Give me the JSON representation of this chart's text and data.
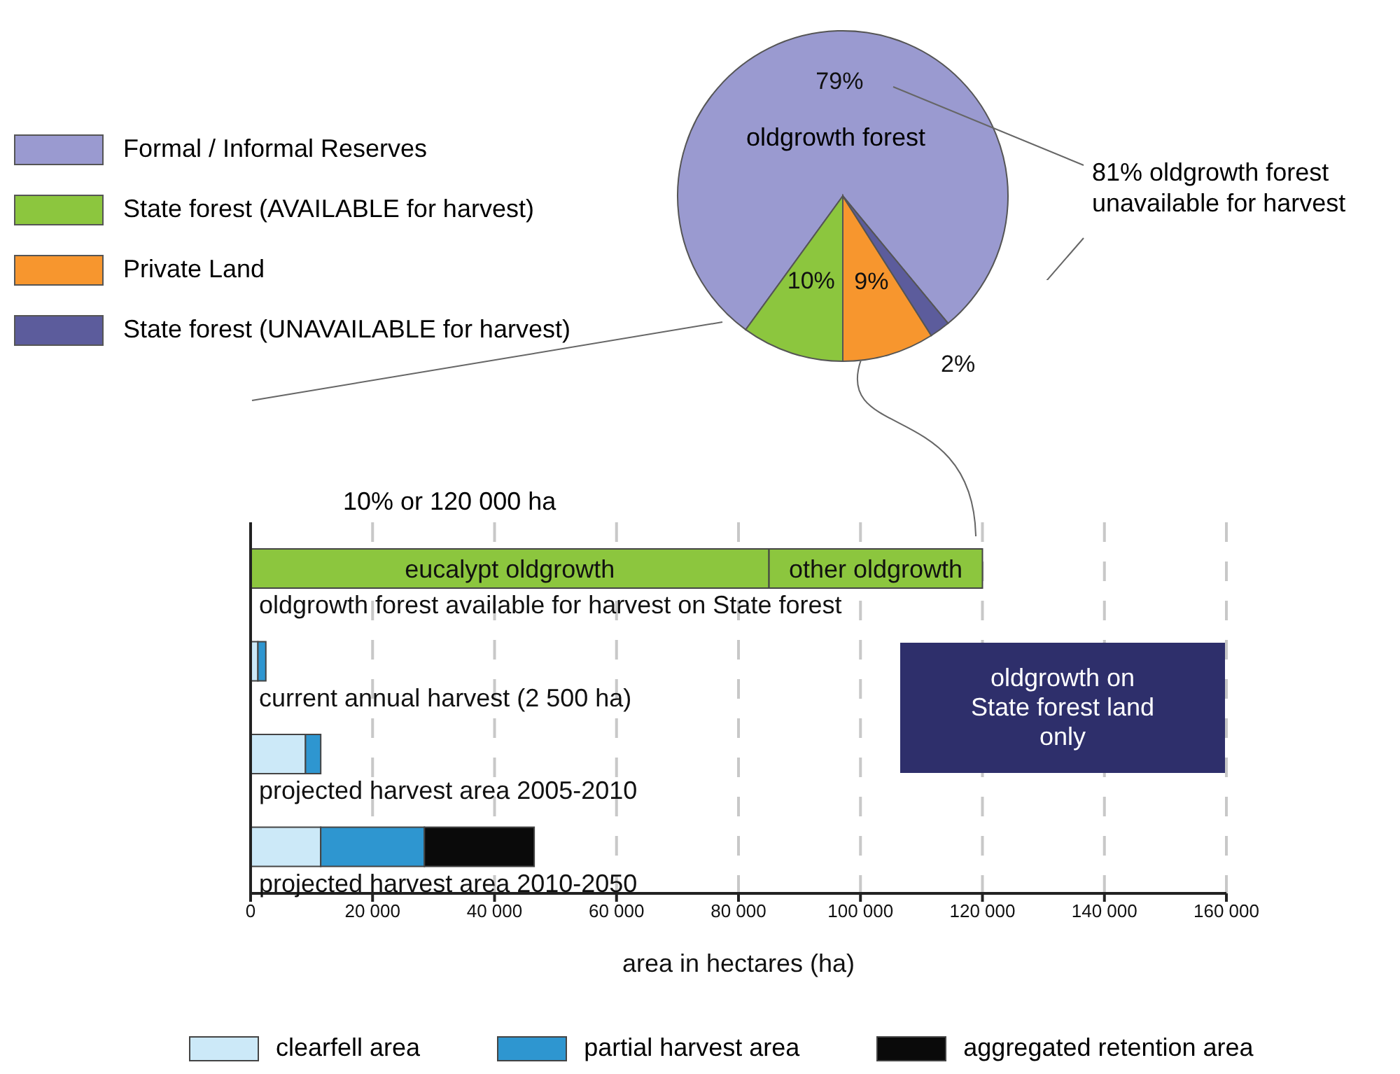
{
  "chart_data": [
    {
      "type": "pie",
      "categories": [
        "Formal / Informal Reserves",
        "State forest (AVAILABLE for harvest)",
        "Private Land",
        "State forest (UNAVAILABLE for harvest)"
      ],
      "values": [
        79,
        10,
        9,
        2
      ],
      "colors": [
        "#9a9ad0",
        "#8cc63e",
        "#f7962e",
        "#5c5c9c"
      ],
      "value_labels": [
        "79%",
        "10%",
        "9%",
        "2%"
      ],
      "legend": "left",
      "annotations": [
        "oldgrowth forest",
        "81% oldgrowth forest unavailable for harvest"
      ]
    },
    {
      "type": "bar",
      "orientation": "horizontal",
      "stacked": true,
      "categories": [
        "oldgrowth forest available for harvest on State forest",
        "current annual harvest (2 500 ha)",
        "projected harvest area 2005-2010",
        "projected harvest area 2010-2050"
      ],
      "series": [
        {
          "name": "eucalypt oldgrowth",
          "color": "#8cc63e",
          "values": [
            85000,
            null,
            null,
            null
          ]
        },
        {
          "name": "other oldgrowth",
          "color": "#8cc63e",
          "values": [
            35000,
            null,
            null,
            null
          ]
        },
        {
          "name": "clearfell area",
          "color": "#cce9f8",
          "values": [
            null,
            1200,
            9000,
            11500
          ]
        },
        {
          "name": "partial harvest area",
          "color": "#2e96d0",
          "values": [
            null,
            1300,
            2500,
            17000
          ]
        },
        {
          "name": "aggregated retention area",
          "color": "#0a0a0a",
          "values": [
            null,
            null,
            null,
            18000
          ]
        }
      ],
      "xlim": [
        0,
        160000
      ],
      "xticks": [
        0,
        {
          "value": 20000,
          "label": "20 000"
        },
        {
          "value": 40000,
          "label": "40 000"
        },
        {
          "value": 60000,
          "label": "60 000"
        },
        {
          "value": 80000,
          "label": "80 000"
        },
        {
          "value": 100000,
          "label": "100 000"
        },
        {
          "value": 120000,
          "label": "120 000"
        },
        {
          "value": 140000,
          "label": "140 000"
        },
        {
          "value": 160000,
          "label": "160 000"
        }
      ],
      "xlabel": "area in hectares (ha)",
      "grid": "x",
      "legend": "bottom",
      "annotations": [
        "10% or 120 000 ha",
        "oldgrowth on State forest land only"
      ]
    }
  ]
}
